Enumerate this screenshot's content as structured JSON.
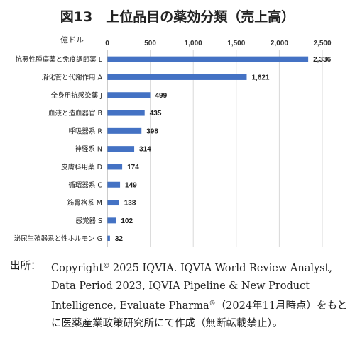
{
  "chart_data": {
    "type": "bar",
    "orientation": "horizontal",
    "title": "図13　上位品目の薬効分類（売上高）",
    "unit_label": "億ドル",
    "xlim": [
      0,
      2500
    ],
    "ticks": [
      "0",
      "500",
      "1,000",
      "1,500",
      "2,000",
      "2,500"
    ],
    "tick_values": [
      0,
      500,
      1000,
      1500,
      2000,
      2500
    ],
    "grid": true,
    "bar_color": "#4472c4",
    "categories": [
      "抗悪性腫瘍薬と免疫調節薬 L",
      "消化管と代謝作用 A",
      "全身用抗感染薬 J",
      "血液と造血器官 B",
      "呼吸器系 R",
      "神経系 N",
      "皮膚科用薬 D",
      "循環器系 C",
      "筋骨格系 M",
      "感覚器 S",
      "泌尿生殖器系と性ホルモン G"
    ],
    "values": [
      2336,
      1621,
      499,
      435,
      398,
      314,
      174,
      149,
      138,
      102,
      32
    ],
    "value_labels": [
      "2,336",
      "1,621",
      "499",
      "435",
      "398",
      "314",
      "174",
      "149",
      "138",
      "102",
      "32"
    ]
  },
  "source": {
    "label": "出所：",
    "text_before_c": "Copyright",
    "c_mark": "©",
    "text_middle": " 2025 IQVIA. IQVIA World Review Analyst, Data Period 2023, IQVIA Pipeline & New Product Intelligence, Evaluate Pharma",
    "r_mark": "®",
    "text_after": "（2024年11月時点）をもとに医薬産業政策研究所にて作成（無断転載禁止）。"
  }
}
